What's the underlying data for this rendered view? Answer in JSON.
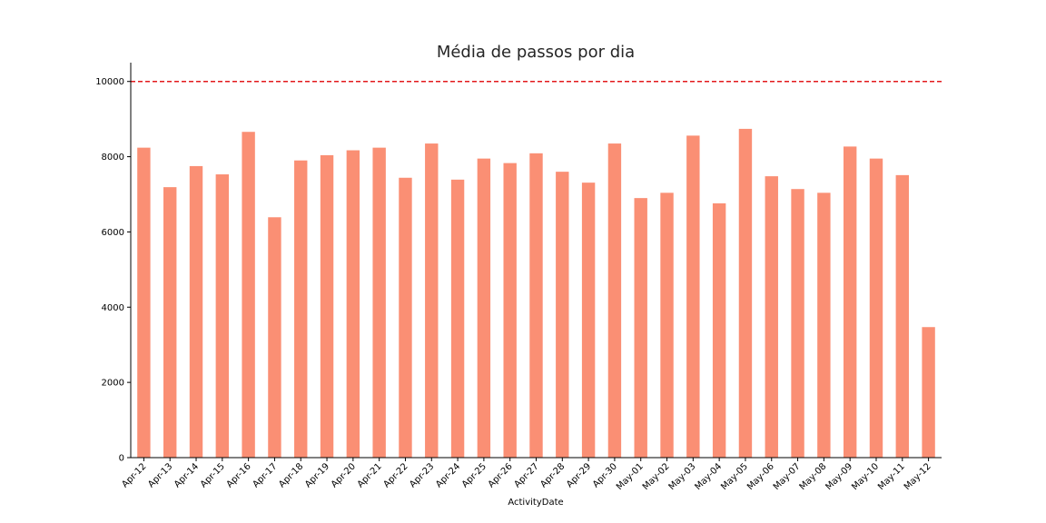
{
  "chart_data": {
    "type": "bar",
    "title": "Média de passos por dia",
    "xlabel": "ActivityDate",
    "ylabel": "",
    "ylim": [
      0,
      10500
    ],
    "yticks": [
      0,
      2000,
      4000,
      6000,
      8000,
      10000
    ],
    "grid": false,
    "legend": "none",
    "bar_color": "#fa8f74",
    "reference_line": {
      "value": 10000,
      "color": "#e31a1c",
      "style": "dashed"
    },
    "categories": [
      "Apr-12",
      "Apr-13",
      "Apr-14",
      "Apr-15",
      "Apr-16",
      "Apr-17",
      "Apr-18",
      "Apr-19",
      "Apr-20",
      "Apr-21",
      "Apr-22",
      "Apr-23",
      "Apr-24",
      "Apr-25",
      "Apr-26",
      "Apr-27",
      "Apr-28",
      "Apr-29",
      "Apr-30",
      "May-01",
      "May-02",
      "May-03",
      "May-04",
      "May-05",
      "May-06",
      "May-07",
      "May-08",
      "May-09",
      "May-10",
      "May-11",
      "May-12"
    ],
    "values": [
      8240,
      7190,
      7750,
      7530,
      8660,
      6390,
      7900,
      8040,
      8170,
      8240,
      7440,
      8350,
      7390,
      7950,
      7830,
      8090,
      7600,
      7310,
      8350,
      6900,
      7040,
      8560,
      6760,
      8740,
      7480,
      7140,
      7040,
      8270,
      7950,
      7510,
      3470
    ]
  }
}
